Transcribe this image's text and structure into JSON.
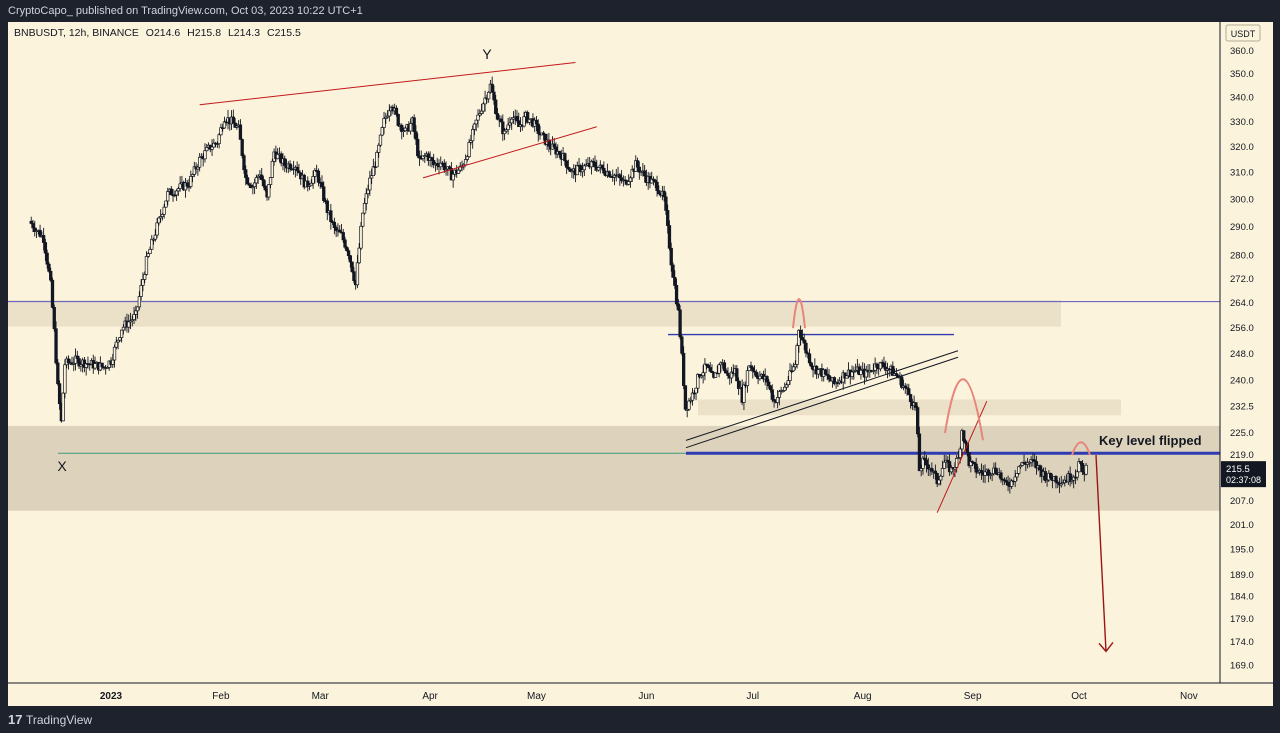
{
  "header": {
    "published": "CryptoCapo_ published on TradingView.com, Oct 03, 2023 10:22 UTC+1"
  },
  "symbol": {
    "name": "BNBUSDT, 12h, BINANCE",
    "open": "O214.6",
    "high": "H215.8",
    "low": "L214.3",
    "close": "C215.5"
  },
  "currency": "USDT",
  "price_label": "215.5",
  "countdown": "02:37:08",
  "annotations": {
    "x": "X",
    "y": "Y",
    "key_level": "Key level flipped"
  },
  "footer": {
    "logo": "17",
    "brand": "TradingView"
  },
  "colors": {
    "background": "#fbf3dc",
    "candle": "#131722",
    "red_line": "#c2181b",
    "blue_line": "#2f3bb0",
    "zone": "#d7ccb6"
  },
  "chart_data": {
    "type": "candlestick",
    "y_ticks": [
      "360.0",
      "350.0",
      "340.0",
      "330.0",
      "320.0",
      "310.0",
      "300.0",
      "290.0",
      "280.0",
      "272.0",
      "264.0",
      "256.0",
      "248.0",
      "240.0",
      "232.5",
      "225.0",
      "219.0",
      "207.0",
      "201.0",
      "195.0",
      "189.0",
      "184.0",
      "179.0",
      "174.0",
      "169.0"
    ],
    "x_ticks": [
      "2023",
      "Feb",
      "Mar",
      "Apr",
      "May",
      "Jun",
      "Jul",
      "Aug",
      "Sep",
      "Oct",
      "Nov"
    ],
    "ylim": [
      166,
      366
    ],
    "scale": "log",
    "close_series": [
      [
        "2022-12-09",
        292
      ],
      [
        "2022-12-11",
        289
      ],
      [
        "2022-12-13",
        286
      ],
      [
        "2022-12-15",
        270
      ],
      [
        "2022-12-16",
        255
      ],
      [
        "2022-12-17",
        238
      ],
      [
        "2022-12-18",
        228
      ],
      [
        "2022-12-19",
        245
      ],
      [
        "2022-12-22",
        246
      ],
      [
        "2022-12-26",
        245
      ],
      [
        "2022-12-30",
        244
      ],
      [
        "2023-01-01",
        246
      ],
      [
        "2023-01-04",
        256
      ],
      [
        "2023-01-08",
        260
      ],
      [
        "2023-01-11",
        278
      ],
      [
        "2023-01-14",
        290
      ],
      [
        "2023-01-17",
        302
      ],
      [
        "2023-01-20",
        304
      ],
      [
        "2023-01-23",
        306
      ],
      [
        "2023-01-26",
        315
      ],
      [
        "2023-01-29",
        320
      ],
      [
        "2023-01-31",
        322
      ],
      [
        "2023-02-02",
        332
      ],
      [
        "2023-02-04",
        330
      ],
      [
        "2023-02-06",
        327
      ],
      [
        "2023-02-08",
        308
      ],
      [
        "2023-02-10",
        305
      ],
      [
        "2023-02-12",
        310
      ],
      [
        "2023-02-14",
        300
      ],
      [
        "2023-02-16",
        318
      ],
      [
        "2023-02-19",
        313
      ],
      [
        "2023-02-22",
        313
      ],
      [
        "2023-02-25",
        305
      ],
      [
        "2023-02-28",
        310
      ],
      [
        "2023-03-03",
        296
      ],
      [
        "2023-03-05",
        289
      ],
      [
        "2023-03-07",
        287
      ],
      [
        "2023-03-09",
        281
      ],
      [
        "2023-03-11",
        270
      ],
      [
        "2023-03-13",
        295
      ],
      [
        "2023-03-15",
        307
      ],
      [
        "2023-03-17",
        316
      ],
      [
        "2023-03-19",
        330
      ],
      [
        "2023-03-21",
        338
      ],
      [
        "2023-03-23",
        330
      ],
      [
        "2023-03-25",
        326
      ],
      [
        "2023-03-27",
        330
      ],
      [
        "2023-03-29",
        314
      ],
      [
        "2023-03-31",
        317
      ],
      [
        "2023-04-02",
        313
      ],
      [
        "2023-04-04",
        314
      ],
      [
        "2023-04-07",
        309
      ],
      [
        "2023-04-10",
        312
      ],
      [
        "2023-04-12",
        320
      ],
      [
        "2023-04-14",
        330
      ],
      [
        "2023-04-16",
        338
      ],
      [
        "2023-04-18",
        345
      ],
      [
        "2023-04-20",
        332
      ],
      [
        "2023-04-22",
        325
      ],
      [
        "2023-04-24",
        333
      ],
      [
        "2023-04-26",
        328
      ],
      [
        "2023-04-28",
        332
      ],
      [
        "2023-04-30",
        330
      ],
      [
        "2023-05-02",
        325
      ],
      [
        "2023-05-05",
        320
      ],
      [
        "2023-05-08",
        317
      ],
      [
        "2023-05-11",
        310
      ],
      [
        "2023-05-14",
        312
      ],
      [
        "2023-05-17",
        313
      ],
      [
        "2023-05-20",
        311
      ],
      [
        "2023-05-23",
        309
      ],
      [
        "2023-05-26",
        306
      ],
      [
        "2023-05-29",
        313
      ],
      [
        "2023-06-01",
        308
      ],
      [
        "2023-06-04",
        305
      ],
      [
        "2023-06-06",
        300
      ],
      [
        "2023-06-08",
        278
      ],
      [
        "2023-06-10",
        261
      ],
      [
        "2023-06-11",
        247
      ],
      [
        "2023-06-12",
        232
      ],
      [
        "2023-06-14",
        236
      ],
      [
        "2023-06-16",
        242
      ],
      [
        "2023-06-18",
        244
      ],
      [
        "2023-06-20",
        240
      ],
      [
        "2023-06-22",
        246
      ],
      [
        "2023-06-24",
        241
      ],
      [
        "2023-06-26",
        243
      ],
      [
        "2023-06-28",
        235
      ],
      [
        "2023-06-30",
        245
      ],
      [
        "2023-07-02",
        242
      ],
      [
        "2023-07-05",
        240
      ],
      [
        "2023-07-07",
        234
      ],
      [
        "2023-07-10",
        238
      ],
      [
        "2023-07-13",
        245
      ],
      [
        "2023-07-14",
        256
      ],
      [
        "2023-07-16",
        249
      ],
      [
        "2023-07-18",
        244
      ],
      [
        "2023-07-21",
        242
      ],
      [
        "2023-07-24",
        239
      ],
      [
        "2023-07-27",
        242
      ],
      [
        "2023-07-30",
        243
      ],
      [
        "2023-08-02",
        242
      ],
      [
        "2023-08-05",
        245
      ],
      [
        "2023-08-08",
        244
      ],
      [
        "2023-08-11",
        241
      ],
      [
        "2023-08-14",
        236
      ],
      [
        "2023-08-16",
        232
      ],
      [
        "2023-08-17",
        215
      ],
      [
        "2023-08-18",
        217
      ],
      [
        "2023-08-20",
        216
      ],
      [
        "2023-08-22",
        212
      ],
      [
        "2023-08-24",
        217
      ],
      [
        "2023-08-26",
        215
      ],
      [
        "2023-08-28",
        218
      ],
      [
        "2023-08-29",
        226
      ],
      [
        "2023-08-31",
        217
      ],
      [
        "2023-09-02",
        215
      ],
      [
        "2023-09-04",
        214
      ],
      [
        "2023-09-06",
        215
      ],
      [
        "2023-09-08",
        215
      ],
      [
        "2023-09-10",
        211
      ],
      [
        "2023-09-12",
        212
      ],
      [
        "2023-09-14",
        216
      ],
      [
        "2023-09-16",
        217
      ],
      [
        "2023-09-18",
        217
      ],
      [
        "2023-09-20",
        215
      ],
      [
        "2023-09-22",
        213
      ],
      [
        "2023-09-24",
        213
      ],
      [
        "2023-09-26",
        212
      ],
      [
        "2023-09-28",
        213
      ],
      [
        "2023-09-30",
        214
      ],
      [
        "2023-10-01",
        217
      ],
      [
        "2023-10-02",
        214
      ],
      [
        "2023-10-03",
        215.5
      ]
    ]
  }
}
